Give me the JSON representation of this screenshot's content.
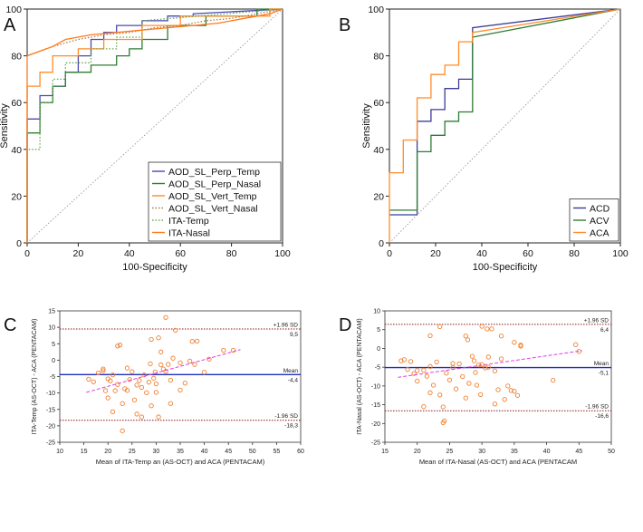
{
  "chart_data": [
    {
      "panel": "A",
      "type": "line",
      "title": "",
      "xlabel": "100-Specificity",
      "ylabel": "Sensitivity",
      "xlim": [
        0,
        100
      ],
      "ylim": [
        0,
        100
      ],
      "xticks": [
        0,
        20,
        40,
        60,
        80,
        100
      ],
      "yticks": [
        0,
        20,
        40,
        60,
        80,
        100
      ],
      "legend_position": "bottom-right",
      "series": [
        {
          "name": "AOD_SL_Perp_Temp",
          "color": "#4a4ab0",
          "dash": "solid",
          "x": [
            0,
            0,
            5,
            5,
            10,
            10,
            15,
            15,
            20,
            20,
            25,
            25,
            30,
            30,
            35,
            35,
            45,
            45,
            55,
            55,
            65,
            65,
            100
          ],
          "y": [
            0,
            53,
            53,
            63,
            63,
            67,
            67,
            73,
            73,
            80,
            80,
            87,
            87,
            90,
            90,
            93,
            93,
            95,
            95,
            97,
            97,
            98,
            100
          ]
        },
        {
          "name": "AOD_SL_Perp_Nasal",
          "color": "#2e7d32",
          "dash": "solid",
          "x": [
            0,
            0,
            5,
            5,
            10,
            10,
            15,
            15,
            25,
            25,
            35,
            35,
            40,
            40,
            45,
            45,
            55,
            55,
            70,
            70,
            90,
            90,
            100
          ],
          "y": [
            0,
            47,
            47,
            60,
            60,
            67,
            67,
            73,
            73,
            76,
            76,
            80,
            80,
            83,
            83,
            87,
            87,
            93,
            93,
            97,
            97,
            100,
            100
          ]
        },
        {
          "name": "AOD_SL_Vert_Temp",
          "color": "#ff8c2a",
          "dash": "solid",
          "x": [
            0,
            0,
            5,
            5,
            10,
            10,
            20,
            20,
            30,
            30,
            45,
            45,
            60,
            60,
            95,
            95,
            100
          ],
          "y": [
            0,
            67,
            67,
            73,
            73,
            80,
            80,
            83,
            83,
            87,
            87,
            93,
            93,
            97,
            97,
            100,
            100
          ]
        },
        {
          "name": "AOD_SL_Vert_Nasal",
          "color": "#b07a4a",
          "dash": "dotted",
          "x": [
            0,
            10,
            20,
            30,
            40,
            50,
            60,
            70,
            80,
            90,
            100
          ],
          "y": [
            80,
            84,
            87,
            89,
            90,
            92,
            93,
            95,
            96,
            98,
            100
          ]
        },
        {
          "name": "ITA-Temp",
          "color": "#6aa84f",
          "dash": "dotted",
          "x": [
            0,
            0,
            5,
            5,
            10,
            10,
            15,
            15,
            25,
            25,
            35,
            35,
            45,
            45,
            100
          ],
          "y": [
            0,
            40,
            40,
            60,
            60,
            70,
            70,
            77,
            77,
            83,
            83,
            88,
            88,
            95,
            100
          ]
        },
        {
          "name": "ITA-Nasal",
          "color": "#ff7a1a",
          "dash": "solid",
          "x": [
            0,
            0,
            5,
            10,
            15,
            25,
            35,
            45,
            55,
            65,
            75,
            85,
            95,
            100
          ],
          "y": [
            0,
            80,
            82,
            84,
            87,
            89,
            90,
            91,
            92,
            93,
            94,
            96,
            98,
            100
          ]
        },
        {
          "name": "",
          "color": "#999999",
          "dash": "dotted",
          "x": [
            0,
            100
          ],
          "y": [
            0,
            100
          ]
        }
      ]
    },
    {
      "panel": "B",
      "type": "line",
      "title": "",
      "xlabel": "100-Specificity",
      "ylabel": "Sensitivity",
      "xlim": [
        0,
        100
      ],
      "ylim": [
        0,
        100
      ],
      "xticks": [
        0,
        20,
        40,
        60,
        80,
        100
      ],
      "yticks": [
        0,
        20,
        40,
        60,
        80,
        100
      ],
      "legend_position": "bottom-right",
      "series": [
        {
          "name": "ACD",
          "color": "#3c3c9a",
          "dash": "solid",
          "x": [
            0,
            12,
            12,
            18,
            18,
            24,
            24,
            30,
            30,
            36,
            36,
            100
          ],
          "y": [
            12,
            12,
            52,
            52,
            57,
            57,
            66,
            66,
            70,
            70,
            92,
            100
          ]
        },
        {
          "name": "ACV",
          "color": "#2e7d32",
          "dash": "solid",
          "x": [
            0,
            12,
            12,
            18,
            18,
            24,
            24,
            30,
            30,
            36,
            36,
            100
          ],
          "y": [
            14,
            14,
            39,
            39,
            46,
            46,
            52,
            52,
            56,
            56,
            88,
            100
          ]
        },
        {
          "name": "ACA",
          "color": "#ff8c2a",
          "dash": "solid",
          "x": [
            0,
            0,
            6,
            6,
            12,
            12,
            18,
            18,
            24,
            24,
            30,
            30,
            36,
            36,
            100
          ],
          "y": [
            0,
            30,
            30,
            44,
            44,
            62,
            62,
            72,
            72,
            76,
            76,
            86,
            86,
            90,
            100
          ]
        },
        {
          "name": "",
          "color": "#999999",
          "dash": "dotted",
          "x": [
            0,
            100
          ],
          "y": [
            0,
            100
          ]
        }
      ]
    },
    {
      "panel": "C",
      "type": "scatter",
      "title": "",
      "xlabel": "Mean of ITA-Temp an (AS-OCT) and ACA (PENTACAM)",
      "ylabel": "ITA-Temp (AS-OCT) - ACA (PENTACAM)",
      "xlim": [
        10,
        60
      ],
      "ylim": [
        -25,
        15
      ],
      "xticks": [
        10,
        15,
        20,
        25,
        30,
        35,
        40,
        45,
        50,
        55,
        60
      ],
      "yticks": [
        -25,
        -20,
        -15,
        -10,
        -5,
        0,
        5,
        10,
        15
      ],
      "mean": -4.4,
      "upper_loa": 9.5,
      "lower_loa": -18.3,
      "mean_label": "Mean",
      "mean_value_label": "-4,4",
      "upper_label": "+1.96 SD",
      "upper_value_label": "9,5",
      "lower_label": "-1.96 SD",
      "lower_value_label": "-18,3",
      "regression": {
        "x": [
          15.5,
          47.5
        ],
        "y": [
          -9.8,
          3.2
        ]
      },
      "points": [
        [
          16,
          -5.8
        ],
        [
          17,
          -6.6
        ],
        [
          18,
          -3.9
        ],
        [
          19,
          -2.7
        ],
        [
          19,
          -3.2
        ],
        [
          19.5,
          -9.3
        ],
        [
          20,
          -5.7
        ],
        [
          20,
          -11.5
        ],
        [
          20.5,
          -6.3
        ],
        [
          21,
          -4.5
        ],
        [
          21,
          -15.7
        ],
        [
          21.5,
          -9.3
        ],
        [
          22,
          4.3
        ],
        [
          22.5,
          4.6
        ],
        [
          22,
          -7.4
        ],
        [
          23,
          -13.2
        ],
        [
          23,
          -21.5
        ],
        [
          23.5,
          -8.7
        ],
        [
          24,
          -2.4
        ],
        [
          24,
          -9.2
        ],
        [
          24.5,
          -5.9
        ],
        [
          25,
          -3.5
        ],
        [
          25.5,
          -12.1
        ],
        [
          26,
          -7.6
        ],
        [
          26,
          -16.4
        ],
        [
          26.5,
          -6.2
        ],
        [
          27,
          -8.3
        ],
        [
          27,
          -17.3
        ],
        [
          27.5,
          -4.5
        ],
        [
          28,
          -9.9
        ],
        [
          28.5,
          -6.7
        ],
        [
          28.8,
          -1.1
        ],
        [
          29,
          6.3
        ],
        [
          29,
          -13.9
        ],
        [
          29.5,
          -5.5
        ],
        [
          29.8,
          -3.6
        ],
        [
          30,
          -7.2
        ],
        [
          30,
          -9.8
        ],
        [
          30.5,
          -17.3
        ],
        [
          30.5,
          6.8
        ],
        [
          31,
          -1.4
        ],
        [
          31,
          2.5
        ],
        [
          31.5,
          -2.7
        ],
        [
          32,
          -3.4
        ],
        [
          32,
          13.0
        ],
        [
          32.5,
          -1.3
        ],
        [
          33,
          -6.1
        ],
        [
          33,
          -13.2
        ],
        [
          33.5,
          0.6
        ],
        [
          34,
          9.1
        ],
        [
          35,
          -9.1
        ],
        [
          35,
          -0.8
        ],
        [
          36,
          -7.0
        ],
        [
          37,
          -0.3
        ],
        [
          37.5,
          5.7
        ],
        [
          38,
          -1.3
        ],
        [
          38.5,
          5.8
        ],
        [
          40,
          -3.7
        ],
        [
          41,
          0.3
        ],
        [
          44,
          3.0
        ],
        [
          46,
          3.0
        ]
      ]
    },
    {
      "panel": "D",
      "type": "scatter",
      "title": "",
      "xlabel": "Mean of ITA-Nasal (AS-OCT) and ACA (PENTACAM",
      "ylabel": "ITA-Nasal (AS-OCT) - ACA (PENTACAM)",
      "xlim": [
        15,
        50
      ],
      "ylim": [
        -25,
        10
      ],
      "xticks": [
        15,
        20,
        25,
        30,
        35,
        40,
        45,
        50
      ],
      "yticks": [
        -25,
        -20,
        -15,
        -10,
        -5,
        0,
        5,
        10
      ],
      "mean": -5.1,
      "upper_loa": 6.4,
      "lower_loa": -16.6,
      "mean_label": "Mean",
      "mean_value_label": "-5,1",
      "upper_label": "+1.96 SD",
      "upper_value_label": "6,4",
      "lower_label": "-1.96 SD",
      "lower_value_label": "-16,6",
      "regression": {
        "x": [
          17,
          45.5
        ],
        "y": [
          -7.7,
          -0.6
        ]
      },
      "points": [
        [
          17.5,
          -3.3
        ],
        [
          18,
          -3.0
        ],
        [
          18.5,
          -5.6
        ],
        [
          19,
          -3.5
        ],
        [
          19.5,
          -6.7
        ],
        [
          20,
          -8.7
        ],
        [
          20,
          -5.9
        ],
        [
          21,
          -5.8
        ],
        [
          21,
          -15.5
        ],
        [
          21.5,
          -7.4
        ],
        [
          22,
          -4.8
        ],
        [
          22,
          -11.8
        ],
        [
          22,
          3.4
        ],
        [
          22.5,
          -9.8
        ],
        [
          23,
          -3.6
        ],
        [
          23.5,
          5.8
        ],
        [
          23.5,
          -12.4
        ],
        [
          24,
          -15.6
        ],
        [
          24,
          -19.8
        ],
        [
          24.2,
          -19.3
        ],
        [
          24.5,
          -6.6
        ],
        [
          25,
          -8.4
        ],
        [
          25.5,
          -5.1
        ],
        [
          25.5,
          -4.0
        ],
        [
          26,
          -10.8
        ],
        [
          26.5,
          -4.1
        ],
        [
          27,
          -7.5
        ],
        [
          27.5,
          3.3
        ],
        [
          27.5,
          -13.2
        ],
        [
          27.8,
          2.3
        ],
        [
          28,
          -9.3
        ],
        [
          28.5,
          -2.1
        ],
        [
          28.8,
          -3.3
        ],
        [
          29,
          -6.4
        ],
        [
          29.2,
          -9.8
        ],
        [
          29.5,
          -4.4
        ],
        [
          29.8,
          -12.3
        ],
        [
          30,
          5.9
        ],
        [
          30,
          -4.3
        ],
        [
          30.5,
          -5.2
        ],
        [
          30.8,
          5.2
        ],
        [
          31,
          -5.0
        ],
        [
          31,
          -2.3
        ],
        [
          31.5,
          5.2
        ],
        [
          32,
          -6.0
        ],
        [
          32,
          -14.8
        ],
        [
          32.5,
          -11.0
        ],
        [
          33,
          3.3
        ],
        [
          33,
          -2.8
        ],
        [
          33.5,
          -13.6
        ],
        [
          34,
          -10.0
        ],
        [
          34.5,
          -11.2
        ],
        [
          35,
          1.6
        ],
        [
          35,
          -11.4
        ],
        [
          35.5,
          -12.5
        ],
        [
          36,
          0.6
        ],
        [
          36,
          0.9
        ],
        [
          44.5,
          1.0
        ],
        [
          45,
          -0.8
        ],
        [
          41,
          -8.5
        ]
      ]
    }
  ],
  "panel_labels": [
    "A",
    "B",
    "C",
    "D"
  ]
}
